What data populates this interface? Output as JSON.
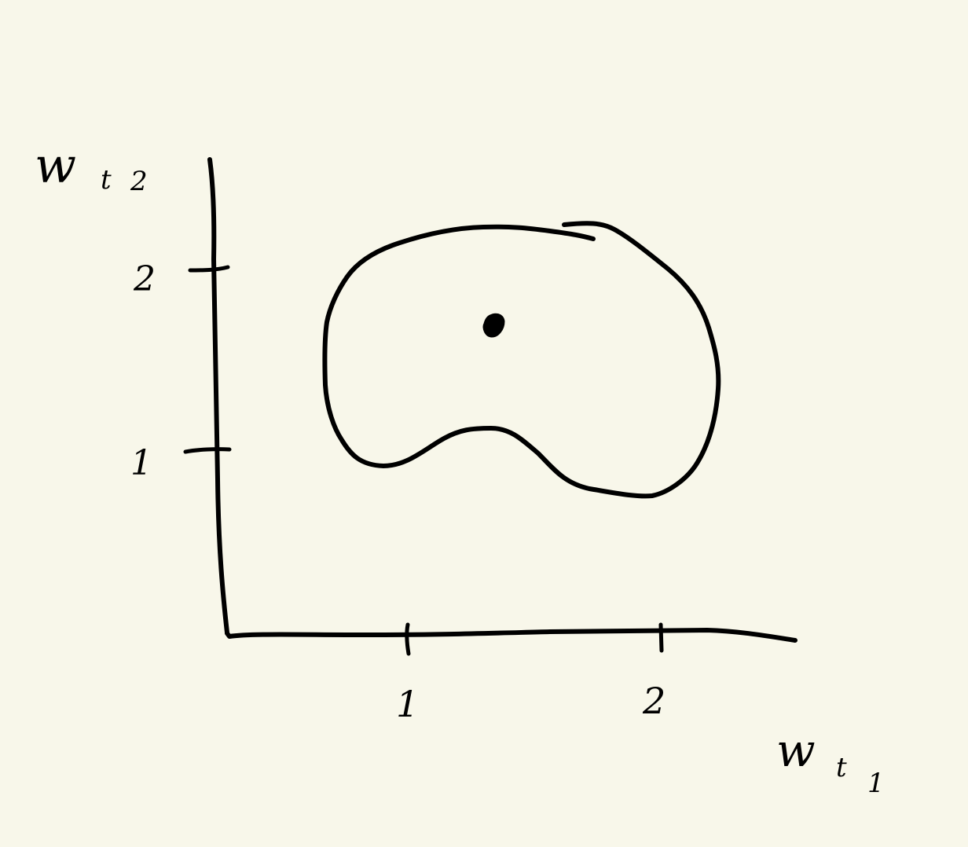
{
  "diagram": {
    "axes": {
      "y_label": {
        "main": "w",
        "sub": "t",
        "index": "2"
      },
      "x_label": {
        "main": "w",
        "sub": "t",
        "index": "1"
      },
      "y_ticks": [
        "2",
        "1"
      ],
      "x_ticks": [
        "1",
        "2"
      ]
    },
    "colors": {
      "background": "#f8f7ea",
      "ink": "#000000"
    }
  }
}
